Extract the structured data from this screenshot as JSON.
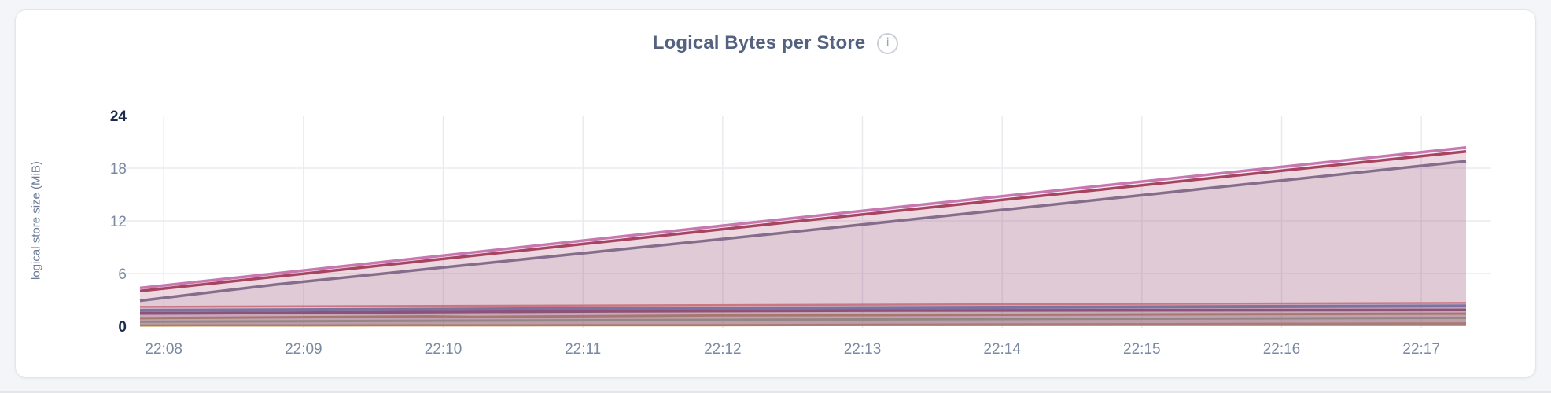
{
  "page": {
    "background_color": "#f3f5f8"
  },
  "card": {
    "background_color": "#ffffff",
    "border_color": "#e3e5e9"
  },
  "header": {
    "title": "Logical Bytes per Store",
    "info_icon_glyph": "i"
  },
  "chart_data": {
    "type": "area",
    "title": "Logical Bytes per Store",
    "xlabel": "",
    "ylabel": "logical store size (MiB)",
    "ylim": [
      0,
      24
    ],
    "y_ticks": [
      0,
      6,
      12,
      18,
      24
    ],
    "y_tick_emphasized": [
      0,
      24
    ],
    "y_gridlines": [
      6,
      12,
      18
    ],
    "grid": true,
    "legend": "none",
    "gridline_color": "#e9ebef",
    "x_domain_minutes": [
      7.83,
      17.32
    ],
    "x_ticks": [
      {
        "t": 8,
        "label": "22:08"
      },
      {
        "t": 9,
        "label": "22:09"
      },
      {
        "t": 10,
        "label": "22:10"
      },
      {
        "t": 11,
        "label": "22:11"
      },
      {
        "t": 12,
        "label": "22:12"
      },
      {
        "t": 13,
        "label": "22:13"
      },
      {
        "t": 14,
        "label": "22:14"
      },
      {
        "t": 15,
        "label": "22:15"
      },
      {
        "t": 16,
        "label": "22:16"
      },
      {
        "t": 17,
        "label": "22:17"
      }
    ],
    "fill_opacity": 0.13,
    "series": [
      {
        "id": "s9",
        "color": "#c49a57",
        "width": 3,
        "points": [
          [
            7.83,
            0.08
          ],
          [
            11.9,
            0.12
          ],
          [
            17.32,
            0.3
          ]
        ]
      },
      {
        "id": "s8",
        "color": "#85b789",
        "width": 3,
        "points": [
          [
            7.83,
            0.5
          ],
          [
            11.9,
            0.72
          ],
          [
            17.32,
            0.95
          ]
        ]
      },
      {
        "id": "s7",
        "color": "#b5904e",
        "width": 3,
        "points": [
          [
            7.83,
            0.9
          ],
          [
            9.9,
            1.12
          ],
          [
            10.2,
            1.06
          ],
          [
            11.9,
            1.22
          ],
          [
            17.32,
            1.42
          ]
        ]
      },
      {
        "id": "s6",
        "color": "#7d3a64",
        "width": 3.5,
        "points": [
          [
            7.83,
            1.45
          ],
          [
            11.0,
            1.68
          ],
          [
            13.0,
            1.78
          ],
          [
            17.32,
            1.85
          ]
        ]
      },
      {
        "id": "s5",
        "color": "#5b79b6",
        "width": 4,
        "points": [
          [
            7.83,
            1.8
          ],
          [
            11.9,
            2.05
          ],
          [
            17.32,
            2.3
          ]
        ]
      },
      {
        "id": "s4",
        "color": "#df8282",
        "width": 2.5,
        "points": [
          [
            7.83,
            2.2
          ],
          [
            11.9,
            2.4
          ],
          [
            17.32,
            2.65
          ]
        ]
      },
      {
        "id": "s3",
        "color": "#74758f",
        "width": 3.5,
        "points": [
          [
            7.83,
            2.9
          ],
          [
            8.8,
            4.75
          ],
          [
            12.5,
            10.75
          ],
          [
            17.32,
            18.8
          ]
        ]
      },
      {
        "id": "s2",
        "color": "#a23d55",
        "width": 3.5,
        "points": [
          [
            7.83,
            4.0
          ],
          [
            12.5,
            11.9
          ],
          [
            17.32,
            19.9
          ]
        ]
      },
      {
        "id": "s1",
        "color": "#c778b0",
        "width": 3.5,
        "points": [
          [
            7.83,
            4.35
          ],
          [
            12.5,
            12.3
          ],
          [
            17.32,
            20.35
          ]
        ]
      }
    ]
  }
}
